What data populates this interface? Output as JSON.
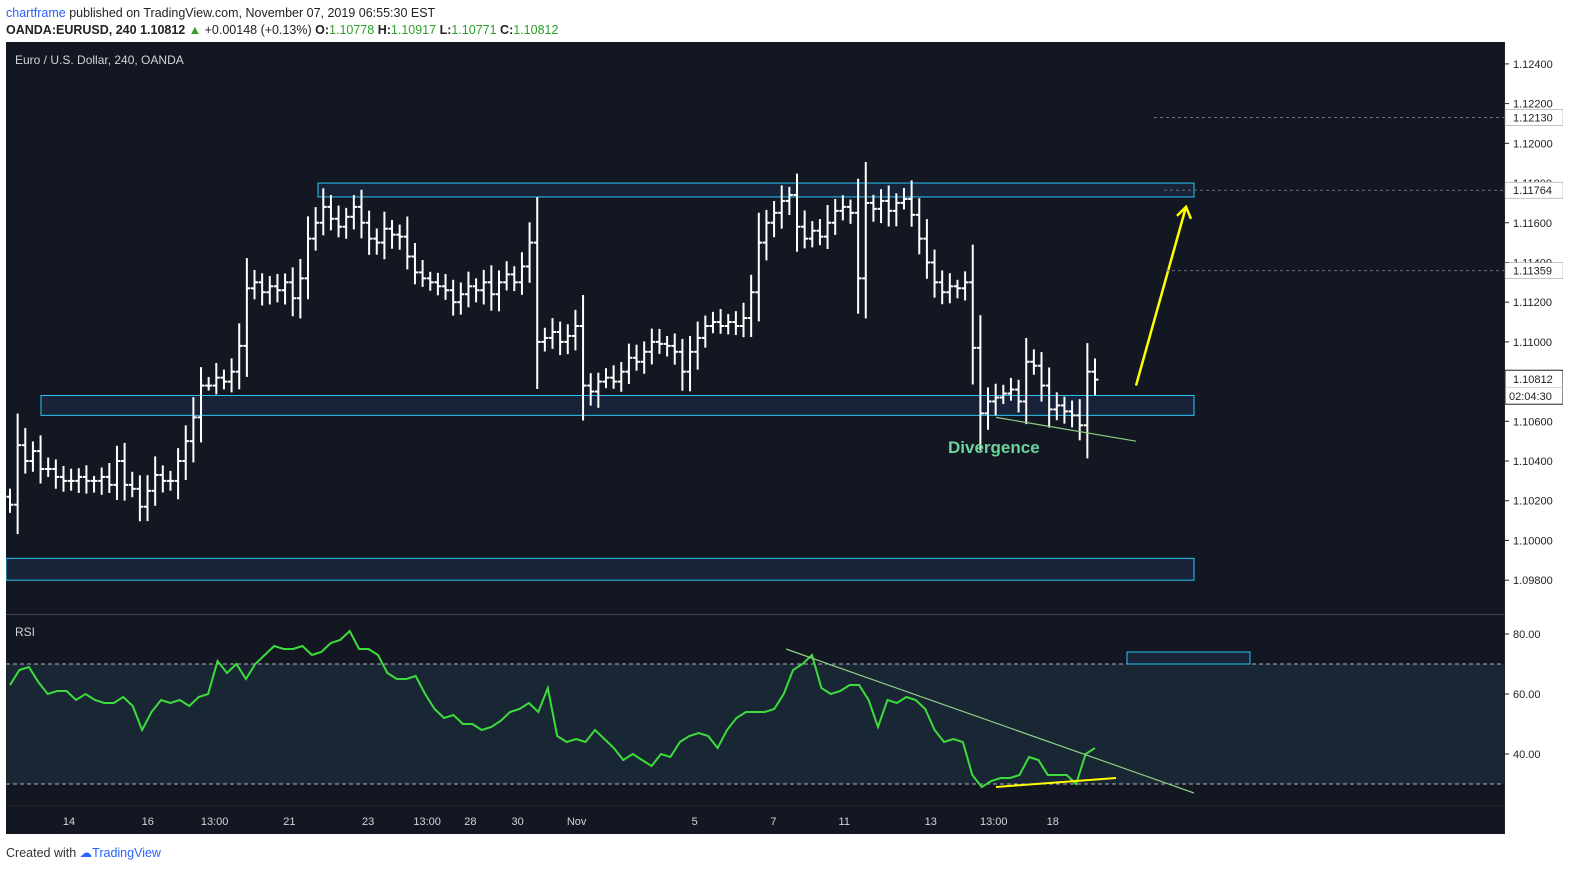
{
  "header": {
    "author": "chartframe",
    "published_text": " published on TradingView.com, November 07, 2019 06:55:30 EST",
    "symbol_line": "OANDA:EURUSD, 240",
    "last": "1.10812",
    "change": "+0.00148 (+0.13%)",
    "open_label": "O:",
    "open": "1.10778",
    "high_label": "H:",
    "high": "1.10917",
    "low_label": "L:",
    "low": "1.10771",
    "close_label": "C:",
    "close": "1.10812"
  },
  "footer": {
    "created_with": "Created with",
    "brand": "TradingView"
  },
  "colors": {
    "background": "#131722",
    "candle": "#ffffff",
    "zone_border": "#29c5f6",
    "zone_fill": "#1e2b4a",
    "rsi_line": "#3ddc3d",
    "arrow": "#ffff00",
    "divergence_text": "#6cd39a",
    "trendline": "#8fcc85",
    "accent_link": "#2962ff"
  },
  "chart_data": [
    {
      "type": "candlestick",
      "title": "Euro / U.S. Dollar, 240, OANDA",
      "price_labels": [
        "1.12400",
        "1.12200",
        "1.12000",
        "1.11800",
        "1.11600",
        "1.11400",
        "1.11200",
        "1.11000",
        "1.10800",
        "1.10600",
        "1.10400",
        "1.10200",
        "1.10000",
        "1.09800"
      ],
      "highlighted_levels": [
        {
          "price": 1.1213,
          "label": "1.12130"
        },
        {
          "price": 1.11764,
          "label": "1.11764"
        },
        {
          "price": 1.11359,
          "label": "1.11359"
        }
      ],
      "last_price": {
        "price": 1.10812,
        "label": "1.10812",
        "countdown": "02:04:30"
      },
      "ylim": [
        1.0968,
        1.1247
      ],
      "x_ticks": [
        "14",
        "16",
        "13:00",
        "21",
        "23",
        "13:00",
        "28",
        "30",
        "Nov",
        "5",
        "7",
        "11",
        "13",
        "13:00",
        "18"
      ],
      "zones": [
        {
          "from": 1.1173,
          "to": 1.118
        },
        {
          "from": 1.1063,
          "to": 1.1073
        },
        {
          "from": 1.098,
          "to": 1.0991
        }
      ],
      "annotations": [
        {
          "text": "Divergence",
          "type": "label"
        },
        {
          "type": "arrow",
          "direction": "up",
          "target": 1.1168
        }
      ],
      "close_series": [
        1.1018,
        1.1048,
        1.104,
        1.1045,
        1.1036,
        1.1036,
        1.1032,
        1.103,
        1.103,
        1.1032,
        1.103,
        1.103,
        1.1032,
        1.1028,
        1.104,
        1.1028,
        1.1026,
        1.1017,
        1.1025,
        1.1033,
        1.103,
        1.103,
        1.104,
        1.105,
        1.1062,
        1.1078,
        1.1078,
        1.1082,
        1.108,
        1.1085,
        1.1098,
        1.1127,
        1.113,
        1.1125,
        1.1128,
        1.1126,
        1.113,
        1.1122,
        1.1132,
        1.1152,
        1.116,
        1.1168,
        1.1162,
        1.1158,
        1.1163,
        1.1168,
        1.116,
        1.1152,
        1.115,
        1.1157,
        1.1154,
        1.1153,
        1.1143,
        1.1135,
        1.1132,
        1.113,
        1.1128,
        1.1126,
        1.112,
        1.1124,
        1.1128,
        1.1126,
        1.113,
        1.1124,
        1.113,
        1.1134,
        1.113,
        1.1138,
        1.115,
        1.11,
        1.1102,
        1.1105,
        1.11,
        1.1103,
        1.1108,
        1.1078,
        1.1075,
        1.108,
        1.1082,
        1.108,
        1.1085,
        1.1092,
        1.109,
        1.1095,
        1.11,
        1.1099,
        1.1098,
        1.1095,
        1.1085,
        1.1095,
        1.1102,
        1.1108,
        1.111,
        1.1108,
        1.111,
        1.1108,
        1.1112,
        1.1125,
        1.115,
        1.116,
        1.1165,
        1.1171,
        1.1174,
        1.1158,
        1.1152,
        1.1156,
        1.1153,
        1.116,
        1.1166,
        1.1168,
        1.1165,
        1.1132,
        1.117,
        1.1167,
        1.1171,
        1.1166,
        1.117,
        1.1172,
        1.1164,
        1.1152,
        1.114,
        1.113,
        1.1125,
        1.1128,
        1.1127,
        1.113,
        1.1097,
        1.1064,
        1.107,
        1.1072,
        1.1074,
        1.1076,
        1.107,
        1.109,
        1.1088,
        1.1078,
        1.1066,
        1.1068,
        1.1065,
        1.1063,
        1.1058,
        1.1085,
        1.1081
      ]
    },
    {
      "type": "line",
      "title": "RSI",
      "ylim": [
        24,
        84
      ],
      "y_tick_labels": [
        "80.00",
        "60.00",
        "40.00"
      ],
      "levels": [
        70,
        30
      ],
      "zone": {
        "from": 70,
        "to": 74
      },
      "series": [
        {
          "name": "RSI",
          "values": [
            63,
            68,
            69,
            64,
            60,
            61,
            61,
            58,
            60,
            58,
            57,
            57,
            59,
            56,
            48,
            54,
            58,
            57,
            58,
            56,
            59,
            60,
            71,
            67,
            70,
            65,
            70,
            73,
            76,
            75,
            75,
            76,
            73,
            74,
            77,
            78,
            81,
            75,
            75,
            73,
            67,
            65,
            65,
            66,
            60,
            55,
            52,
            53,
            50,
            50,
            48,
            49,
            51,
            54,
            55,
            57,
            54,
            62,
            46,
            44,
            45,
            44,
            48,
            45,
            42,
            38,
            40,
            38,
            36,
            40,
            39,
            44,
            46,
            47,
            46,
            42,
            48,
            52,
            54,
            54,
            54,
            55,
            60,
            68,
            70,
            73,
            62,
            60,
            61,
            63,
            63,
            58,
            49,
            58,
            57,
            59,
            58,
            55,
            48,
            44,
            45,
            44,
            33,
            29,
            31,
            32,
            32,
            33,
            39,
            38,
            33,
            33,
            33,
            30,
            40,
            42
          ]
        }
      ]
    }
  ]
}
